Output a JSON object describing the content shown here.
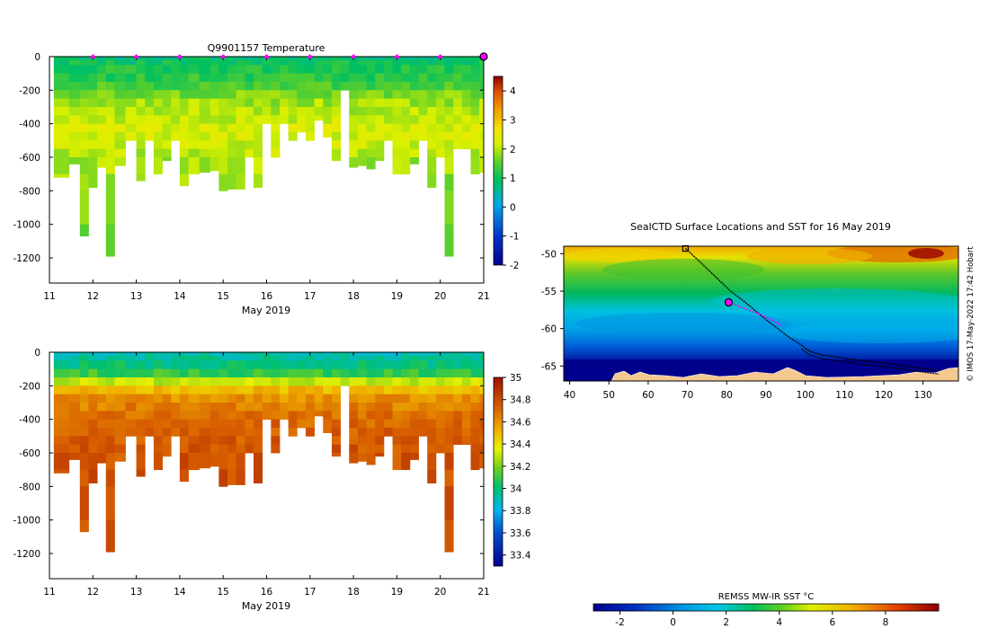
{
  "chart_data": [
    {
      "type": "heatmap",
      "id": "temperature",
      "title": "Q9901157  Temperature",
      "xlabel": "May 2019",
      "ylabel": "",
      "xlim": [
        11,
        21
      ],
      "ylim": [
        -1350,
        0
      ],
      "x_ticks": [
        "11",
        "12",
        "13",
        "14",
        "15",
        "16",
        "17",
        "18",
        "19",
        "20",
        "21"
      ],
      "y_ticks": [
        "0",
        "-200",
        "-400",
        "-600",
        "-800",
        "-1000",
        "-1200"
      ],
      "colorbar": {
        "min": -2,
        "max": 4.5,
        "ticks": [
          "4",
          "3",
          "2",
          "1",
          "0",
          "-1",
          "-2"
        ]
      },
      "markers": {
        "color": "#ff00ff",
        "x": [
          12,
          13,
          14,
          15,
          16,
          17,
          18,
          19,
          20
        ],
        "current_x": 21
      },
      "profile_times": [
        11.3,
        11.6,
        11.8,
        12.0,
        12.2,
        12.4,
        12.6,
        12.9,
        13.1,
        13.3,
        13.5,
        13.7,
        13.9,
        14.1,
        14.3,
        14.6,
        14.8,
        15.0,
        15.2,
        15.4,
        15.6,
        15.8,
        16.0,
        16.2,
        16.4,
        16.6,
        16.8,
        17.0,
        17.2,
        17.4,
        17.6,
        17.8,
        18.0,
        18.2,
        18.4,
        18.6,
        18.8,
        19.0,
        19.2,
        19.4,
        19.6,
        19.8,
        20.0,
        20.2,
        20.4,
        20.6,
        20.8,
        21.0
      ],
      "profile_max_depth": [
        720,
        640,
        1070,
        780,
        660,
        1190,
        650,
        500,
        740,
        500,
        700,
        620,
        500,
        770,
        700,
        690,
        680,
        800,
        790,
        790,
        600,
        780,
        400,
        600,
        400,
        500,
        450,
        500,
        380,
        480,
        620,
        200,
        660,
        650,
        670,
        620,
        500,
        700,
        700,
        640,
        500,
        780,
        600,
        1190,
        550,
        550,
        700,
        690
      ],
      "depth_levels": [
        0,
        -20,
        -50,
        -100,
        -150,
        -200,
        -250,
        -300,
        -350,
        -400,
        -450,
        -500,
        -550,
        -600,
        -700,
        -800,
        -1000,
        -1200
      ],
      "temperature_profile": [
        0.8,
        1.0,
        1.1,
        1.2,
        1.4,
        1.7,
        1.9,
        2.0,
        2.1,
        2.2,
        2.2,
        2.1,
        2.0,
        1.9,
        1.8,
        1.7,
        1.6,
        1.5
      ]
    },
    {
      "type": "heatmap",
      "id": "salinity",
      "title": "",
      "xlabel": "May 2019",
      "ylabel": "",
      "xlim": [
        11,
        21
      ],
      "ylim": [
        -1350,
        0
      ],
      "x_ticks": [
        "11",
        "12",
        "13",
        "14",
        "15",
        "16",
        "17",
        "18",
        "19",
        "20",
        "21"
      ],
      "y_ticks": [
        "0",
        "-200",
        "-400",
        "-600",
        "-800",
        "-1000",
        "-1200"
      ],
      "colorbar": {
        "min": 33.3,
        "max": 35.0,
        "ticks": [
          "35",
          "34.8",
          "34.6",
          "34.4",
          "34.2",
          "34",
          "33.8",
          "33.6",
          "33.4"
        ]
      },
      "salinity_profile": [
        33.9,
        33.95,
        34.0,
        34.1,
        34.3,
        34.5,
        34.6,
        34.65,
        34.7,
        34.72,
        34.74,
        34.75,
        34.76,
        34.77,
        34.78,
        34.78,
        34.78,
        34.78
      ]
    },
    {
      "type": "map",
      "id": "sst_map",
      "title": "SealCTD Surface Locations and SST for 16 May 2019",
      "xlim": [
        38.5,
        139
      ],
      "ylim": [
        -67,
        -49
      ],
      "x_ticks": [
        "40",
        "50",
        "60",
        "70",
        "80",
        "90",
        "100",
        "110",
        "120",
        "130"
      ],
      "y_ticks": [
        "-50",
        "-55",
        "-60",
        "-65"
      ],
      "side_text": "© IMOS 17-May-2022 17:42 Hobart",
      "colorbar": {
        "label": "REMSS MW-IR SST °C",
        "min": -3,
        "max": 10,
        "ticks": [
          "-2",
          "0",
          "2",
          "4",
          "6",
          "8"
        ]
      },
      "track_lon": [
        69.5,
        72,
        75,
        78,
        81,
        84,
        87,
        90,
        93,
        96,
        99,
        101,
        104,
        108,
        112,
        116,
        120,
        124,
        128,
        131,
        134
      ],
      "track_lat": [
        -49.3,
        -50.5,
        -52.0,
        -53.5,
        -55.0,
        -56.2,
        -57.5,
        -58.8,
        -60.0,
        -61.2,
        -62.2,
        -63.0,
        -63.5,
        -63.8,
        -64.1,
        -64.4,
        -64.6,
        -64.9,
        -65.2,
        -65.4,
        -65.6
      ],
      "recent_track_lon": [
        80.5,
        83,
        86,
        89,
        92,
        94
      ],
      "recent_track_lat": [
        -56.5,
        -57.0,
        -57.6,
        -58.2,
        -59.0,
        -59.6
      ],
      "current_position": {
        "lon": 80.5,
        "lat": -56.5
      },
      "start_position": {
        "lon": 69.5,
        "lat": -49.3
      }
    }
  ]
}
